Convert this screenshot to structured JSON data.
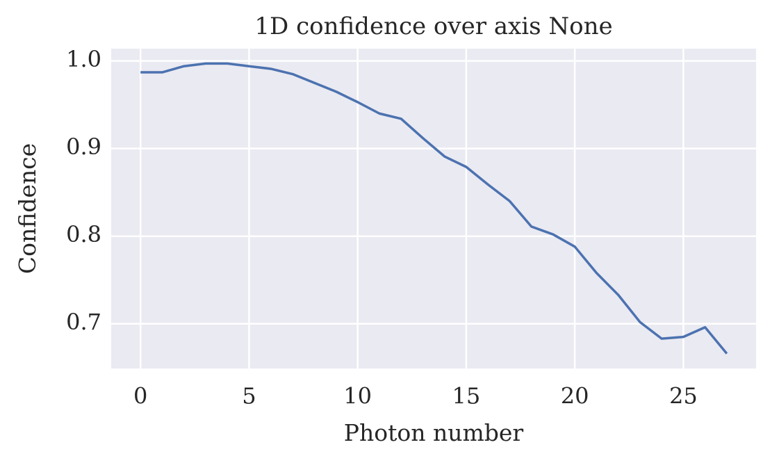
{
  "chart_data": {
    "type": "line",
    "title": "1D confidence over axis None",
    "x_label": "Photon number",
    "y_label": "Confidence",
    "x": [
      0,
      1,
      2,
      3,
      4,
      5,
      6,
      7,
      8,
      9,
      10,
      11,
      12,
      13,
      14,
      15,
      16,
      17,
      18,
      19,
      20,
      21,
      22,
      23,
      24,
      25,
      26,
      27
    ],
    "series": [
      {
        "name": "Confidence",
        "color": "#4c72b0",
        "values": [
          0.987,
          0.987,
          0.994,
          0.997,
          0.997,
          0.994,
          0.991,
          0.985,
          0.975,
          0.965,
          0.953,
          0.94,
          0.934,
          0.912,
          0.891,
          0.879,
          0.859,
          0.84,
          0.811,
          0.802,
          0.788,
          0.758,
          0.733,
          0.702,
          0.683,
          0.685,
          0.696,
          0.666
        ]
      }
    ],
    "xlim": [
      -1.35,
      28.35
    ],
    "ylim": [
      0.649,
      1.014
    ],
    "xticks": [
      0,
      5,
      10,
      15,
      20,
      25
    ],
    "yticks": [
      0.7,
      0.8,
      0.9,
      {
        "value": 1,
        "label": "1.0"
      }
    ],
    "grid": true
  }
}
